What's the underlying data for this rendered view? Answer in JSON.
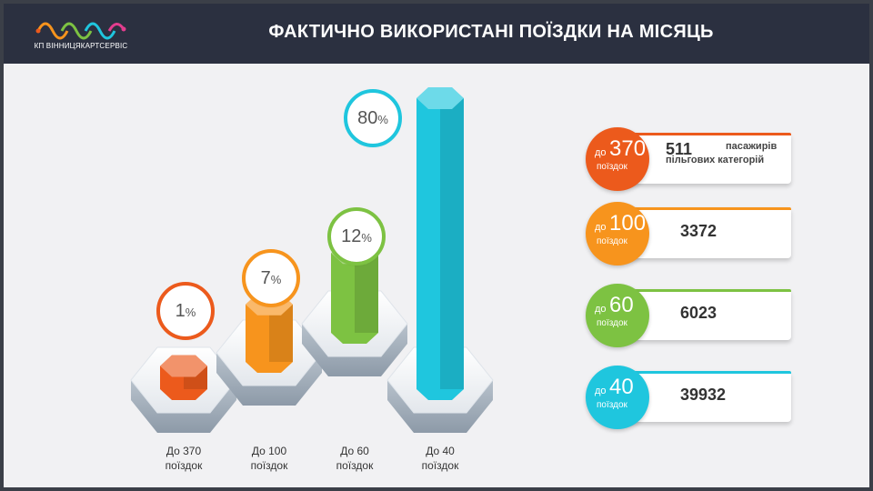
{
  "header": {
    "title": "ФАКТИЧНО ВИКОРИСТАНІ ПОЇЗДКИ НА МІСЯЦЬ",
    "logo_text": "КП ВІННИЦЯКАРТСЕРВІС"
  },
  "colors": {
    "header_bg": "#2b3040",
    "orange_red": "#ec5a1c",
    "orange": "#f7941d",
    "green": "#7dc242",
    "cyan": "#1fc6de"
  },
  "chart_data": {
    "type": "bar",
    "categories": [
      "До 370 поїздок",
      "До 100 поїздок",
      "До 60 поїздок",
      "До 40 поїздок"
    ],
    "values": [
      1,
      7,
      12,
      80
    ],
    "unit": "%",
    "category_lines": [
      [
        "До 370",
        "поїздок"
      ],
      [
        "До 100",
        "поїздок"
      ],
      [
        "До 60",
        "поїздок"
      ],
      [
        "До 40",
        "поїздок"
      ]
    ],
    "labels": [
      "1",
      "7",
      "12",
      "80"
    ],
    "percent_symbol": "%",
    "colors": [
      "#ec5a1c",
      "#f7941d",
      "#7dc242",
      "#1fc6de"
    ]
  },
  "legend": [
    {
      "prefix": "до",
      "number": "370",
      "unit": "поїздок",
      "value": "511",
      "note_line1": "пасажирів",
      "note_line2": "пільгових категорій",
      "color": "#ec5a1c"
    },
    {
      "prefix": "до",
      "number": "100",
      "unit": "поїздок",
      "value": "3372",
      "color": "#f7941d"
    },
    {
      "prefix": "до",
      "number": "60",
      "unit": "поїздок",
      "value": "6023",
      "color": "#7dc242"
    },
    {
      "prefix": "до",
      "number": "40",
      "unit": "поїздок",
      "value": "39932",
      "color": "#1fc6de"
    }
  ]
}
